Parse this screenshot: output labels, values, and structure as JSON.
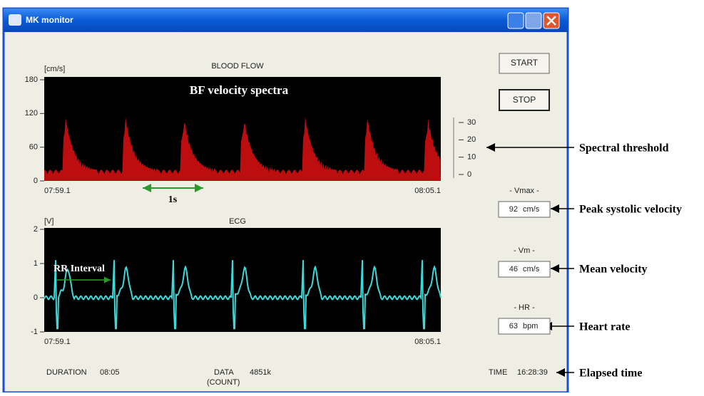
{
  "window": {
    "title": "MK monitor"
  },
  "blood_flow": {
    "title": "BLOOD FLOW",
    "unit": "[cm/s]",
    "overlay": "BF velocity spectra",
    "ylim": [
      0,
      180
    ],
    "yticks": [
      0,
      60,
      120,
      180
    ],
    "x_start": "07:59.1",
    "x_end": "08:05.1",
    "scale_label": "1s"
  },
  "ecg": {
    "title": "ECG",
    "unit": "[V]",
    "overlay": "RR Interval",
    "ylim": [
      -1,
      2
    ],
    "yticks": [
      -1,
      0,
      1,
      2
    ],
    "x_start": "07:59.1",
    "x_end": "08:05.1"
  },
  "threshold": {
    "lim": [
      0,
      30
    ],
    "ticks": [
      0,
      10,
      20,
      30
    ]
  },
  "buttons": [
    "START",
    "STOP"
  ],
  "readouts": [
    {
      "label": "- Vmax -",
      "value": 92,
      "unit": "cm/s"
    },
    {
      "label": "- Vm -",
      "value": 46,
      "unit": "cm/s"
    },
    {
      "label": "- HR -",
      "value": 63,
      "unit": "bpm"
    }
  ],
  "footer": {
    "duration_label": "DURATION",
    "duration": "08:05",
    "data_label": "DATA",
    "data_sub": "(COUNT)",
    "data": "4851k",
    "time_label": "TIME",
    "time": "16:28:39"
  },
  "annotations": [
    "Spectral threshold",
    "Peak systolic velocity",
    "Mean velocity",
    "Heart rate",
    "Elapsed time"
  ]
}
